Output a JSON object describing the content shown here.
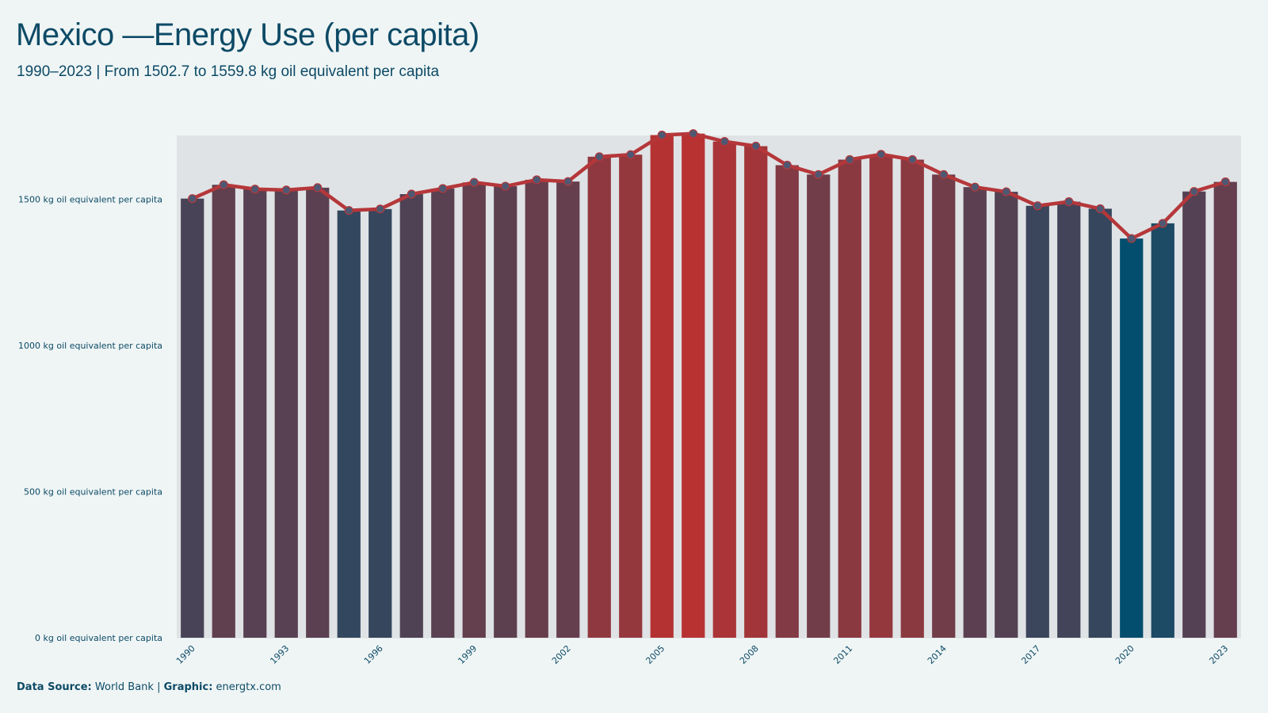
{
  "header": {
    "title": "Mexico —Energy Use (per capita)",
    "subtitle": "1990–2023 | From 1502.7  to 1559.8  kg oil equivalent per capita"
  },
  "footer": {
    "source_label": "Data Source:",
    "source_value": "World Bank",
    "separator": "|",
    "graphic_label": "Graphic:",
    "graphic_value": "energtx.com"
  },
  "colors": {
    "background": "#eff5f5",
    "text": "#0d4a66",
    "line": "#b5373a",
    "low": "#034e6e",
    "high": "#b83232",
    "grid": "#d8dfe0",
    "bar_backdrop": "#dfe3e5"
  },
  "chart_data": {
    "type": "bar",
    "overlay": "line",
    "title": "Mexico —Energy Use (per capita)",
    "xlabel": "",
    "ylabel": "",
    "unit": "kg oil equivalent per capita",
    "ylim": [
      0,
      1800
    ],
    "yticks": [
      0,
      500,
      1000,
      1500
    ],
    "ytick_labels": [
      "0 kg oil equivalent per capita",
      "500 kg oil equivalent per capita",
      "1000 kg oil equivalent per capita",
      "1500 kg oil equivalent per capita"
    ],
    "xtick_labels": [
      "1990",
      "1993",
      "1996",
      "1999",
      "2002",
      "2005",
      "2008",
      "2011",
      "2014",
      "2017",
      "2020",
      "2023"
    ],
    "grid": true,
    "legend": false,
    "categories": [
      "1990",
      "1991",
      "1992",
      "1993",
      "1994",
      "1995",
      "1996",
      "1997",
      "1998",
      "1999",
      "2000",
      "2001",
      "2002",
      "2003",
      "2004",
      "2005",
      "2006",
      "2007",
      "2008",
      "2009",
      "2010",
      "2011",
      "2012",
      "2013",
      "2014",
      "2015",
      "2016",
      "2017",
      "2018",
      "2019",
      "2020",
      "2021",
      "2022",
      "2023"
    ],
    "values": [
      1502.7,
      1550,
      1535,
      1532,
      1540,
      1462,
      1467,
      1518,
      1537,
      1558,
      1545,
      1567,
      1561,
      1646,
      1653,
      1720,
      1725,
      1698,
      1682,
      1617,
      1585,
      1636,
      1654,
      1636,
      1585,
      1542,
      1526,
      1478,
      1492,
      1468,
      1366,
      1418,
      1527,
      1559.8
    ]
  }
}
